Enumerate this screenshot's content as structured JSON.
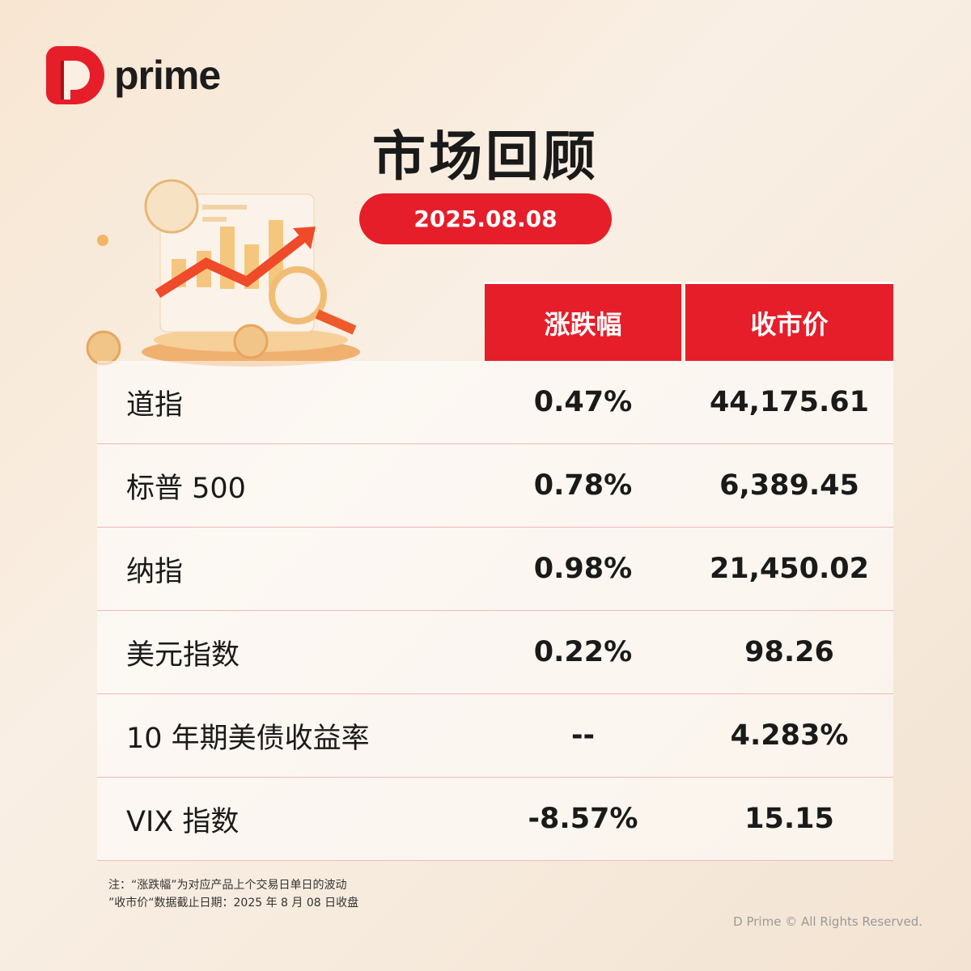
{
  "brand": {
    "name": "prime",
    "logo_letter": "D"
  },
  "title": "市场回顾",
  "date": "2025.08.08",
  "table": {
    "headers": [
      "涨跌幅",
      "收市价"
    ],
    "rows": [
      {
        "name": "道指",
        "change": "0.47%",
        "close": "44,175.61"
      },
      {
        "name": "标普 500",
        "change": "0.78%",
        "close": "6,389.45"
      },
      {
        "name": "纳指",
        "change": "0.98%",
        "close": "21,450.02"
      },
      {
        "name": "美元指数",
        "change": "0.22%",
        "close": "98.26"
      },
      {
        "name": "10 年期美债收益率",
        "change": "--",
        "close": "4.283%"
      },
      {
        "name": "VIX 指数",
        "change": "-8.57%",
        "close": "15.15"
      }
    ]
  },
  "notes": [
    "注：“涨跌幅”为对应产品上个交易日单日的波动",
    "”收市价“数据截止日期：2025 年 8 月 08 日收盘"
  ],
  "copyright": "D Prime © All Rights Reserved.",
  "colors": {
    "accent": "#e61e2a"
  }
}
